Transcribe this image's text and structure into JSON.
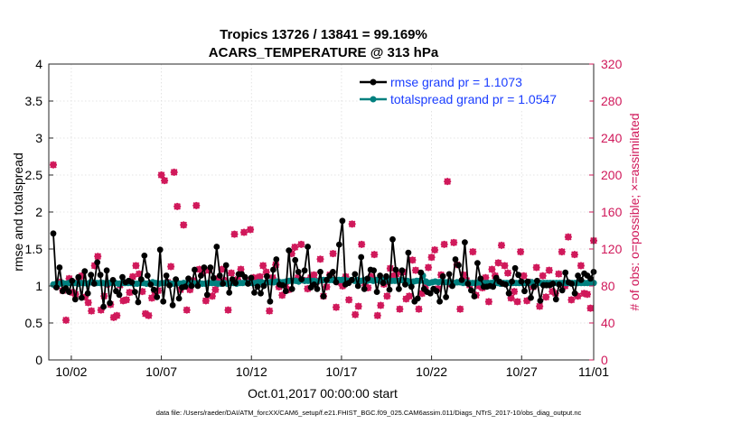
{
  "figure": {
    "title_line1": "Tropics 13726 / 13841 = 99.169%",
    "title_line2": "ACARS_TEMPERATURE @ 313 hPa",
    "xlabel": "Oct.01,2017 00:00:00 start",
    "footer": "data file: /Users/raeder/DAI/ATM_forcXX/CAM6_setup/f.e21.FHIST_BGC.f09_025.CAM6assim.011/Diags_NTrS_2017-10/obs_diag_output.nc"
  },
  "chart_data": {
    "type": "line",
    "title": "Tropics 13726 / 13841 = 99.169%\nACARS_TEMPERATURE @ 313 hPa",
    "xlabel": "Oct.01,2017 00:00:00 start",
    "ylabel": "rmse and totalspread",
    "y2label": "# of obs: o=possible; ×=assimilated",
    "x_unit": "days since Oct.01,2017 00:00:00",
    "xlim": [
      0.75,
      31.0
    ],
    "ylim": [
      0,
      4
    ],
    "y2lim": [
      0,
      320
    ],
    "xtick_values": [
      2,
      7,
      12,
      17,
      22,
      27,
      32
    ],
    "xtick_labels": [
      "10/02",
      "10/07",
      "10/12",
      "10/17",
      "10/22",
      "10/27",
      "11/01"
    ],
    "ytick_values": [
      0,
      0.5,
      1,
      1.5,
      2,
      2.5,
      3,
      3.5,
      4
    ],
    "ytick_labels": [
      "0",
      "0.5",
      "1",
      "1.5",
      "2",
      "2.5",
      "3",
      "3.5",
      "4"
    ],
    "y2tick_values": [
      0,
      40,
      80,
      120,
      160,
      200,
      240,
      280,
      320
    ],
    "y2tick_labels": [
      "0",
      "40",
      "80",
      "120",
      "160",
      "200",
      "240",
      "280",
      "320"
    ],
    "grid": true,
    "legend_position": "top-right",
    "series": [
      {
        "name": "rmse grand pr = 1.1073",
        "color": "#000000",
        "marker": "circle",
        "values": [
          1.71,
          0.98,
          1.25,
          0.93,
          0.97,
          0.92,
          1.07,
          0.82,
          1.12,
          0.84,
          1.2,
          0.9,
          1.15,
          1.03,
          1.32,
          1.15,
          0.72,
          1.21,
          0.77,
          1.08,
          0.93,
          0.88,
          1.12,
          1.05,
          1.07,
          1.05,
          0.92,
          0.78,
          1.09,
          1.41,
          1.14,
          1.02,
          0.95,
          0.85,
          1.49,
          0.79,
          1.14,
          1.01,
          0.74,
          1.09,
          0.83,
          0.98,
          0.99,
          1.1,
          1.0,
          1.22,
          1.0,
          1.14,
          1.25,
          0.88,
          1.25,
          1.11,
          1.53,
          1.14,
          1.03,
          1.28,
          0.91,
          1.09,
          1.04,
          1.16,
          1.16,
          1.12,
          1.03,
          1.11,
          0.91,
          0.99,
          0.9,
          1.0,
          1.13,
          0.79,
          1.22,
          1.36,
          1.02,
          1.01,
          0.93,
          1.48,
          0.96,
          1.35,
          1.19,
          1.09,
          1.21,
          1.53,
          0.98,
          1.02,
          0.96,
          1.19,
          0.86,
          1.08,
          1.14,
          1.19,
          1.05,
          1.56,
          1.88,
          1.02,
          1.04,
          1.08,
          1.16,
          1.0,
          1.39,
          0.96,
          1.1,
          1.22,
          1.21,
          0.92,
          1.14,
          1.04,
          1.13,
          0.95,
          1.63,
          1.22,
          0.96,
          1.21,
          1.02,
          1.45,
          0.99,
          0.79,
          0.83,
          1.18,
          0.96,
          0.92,
          0.9,
          0.96,
          0.93,
          0.79,
          1.13,
          0.85,
          1.16,
          1.0,
          1.36,
          1.28,
          1.08,
          1.59,
          1.03,
          0.94,
          0.86,
          1.31,
          1.1,
          0.99,
          0.99,
          1.0,
          0.99,
          1.11,
          1.06,
          1.03,
          1.02,
          0.9,
          1.06,
          1.24,
          1.15,
          1.06,
          0.93,
          1.06,
          0.84,
          0.99,
          1.07,
          0.8,
          1.01,
          1.01,
          1.01,
          1.03,
          0.82,
          1.02,
          0.94,
          1.18,
          1.05,
          1.03,
          0.9,
          1.14,
          1.08,
          1.17,
          1.14,
          1.1,
          1.19
        ]
      },
      {
        "name": "totalspread grand pr = 1.0547",
        "color": "#00807f",
        "marker": "circle",
        "values": [
          1.02,
          1.03,
          1.03,
          1.04,
          1.03,
          1.04,
          1.04,
          1.04,
          1.03,
          1.04,
          1.04,
          1.03,
          1.05,
          1.04,
          1.04,
          1.04,
          1.04,
          1.03,
          1.04,
          1.04,
          1.04,
          1.03,
          1.04,
          1.04,
          1.04,
          1.04,
          1.03,
          1.03,
          1.04,
          1.04,
          1.03,
          1.04,
          1.05,
          1.04,
          1.03,
          1.04,
          1.04,
          1.04,
          1.03,
          1.03,
          1.04,
          1.03,
          1.04,
          1.03,
          1.04,
          1.04,
          1.03,
          1.04,
          1.03,
          1.03,
          1.04,
          1.04,
          1.04,
          1.03,
          1.03,
          1.04,
          1.03,
          1.04,
          1.04,
          1.03,
          1.04,
          1.04,
          1.05,
          1.04,
          1.04,
          1.04,
          1.05,
          1.05,
          1.04,
          1.05,
          1.05,
          1.05,
          1.06,
          1.05,
          1.05,
          1.06,
          1.07,
          1.07,
          1.07,
          1.06,
          1.08,
          1.07,
          1.07,
          1.07,
          1.07,
          1.06,
          1.08,
          1.08,
          1.08,
          1.08,
          1.08,
          1.08,
          1.08,
          1.08,
          1.08,
          1.07,
          1.08,
          1.07,
          1.08,
          1.07,
          1.08,
          1.07,
          1.08,
          1.07,
          1.08,
          1.07,
          1.08,
          1.07,
          1.08,
          1.07,
          1.07,
          1.07,
          1.08,
          1.07,
          1.07,
          1.03,
          1.06,
          1.07,
          1.07,
          1.14,
          1.06,
          1.04,
          1.05,
          1.06,
          1.05,
          1.06,
          1.05,
          1.05,
          1.05,
          1.04,
          1.05,
          1.05,
          1.04,
          1.05,
          1.04,
          1.04,
          1.04,
          1.05,
          1.04,
          1.04,
          1.04,
          1.04,
          1.05,
          1.04,
          1.03,
          1.04,
          1.04,
          1.04,
          1.04,
          1.04,
          1.04,
          1.04,
          1.04,
          1.04,
          1.05,
          1.04,
          1.04,
          1.04,
          1.04,
          1.04,
          1.04,
          1.04,
          1.04,
          1.04,
          1.04,
          1.04,
          1.04,
          1.04,
          1.04,
          1.04,
          1.04,
          1.04,
          1.04,
          1.04,
          1.04
        ]
      }
    ],
    "obs_series": {
      "name": "# of obs (right axis)",
      "color": "#d0185a",
      "possible_marker": "circle",
      "assimilated_marker": "x",
      "possible": [
        211,
        80,
        84,
        75,
        43,
        88,
        73,
        71,
        86,
        91,
        68,
        62,
        53,
        102,
        112,
        54,
        69,
        82,
        60,
        46,
        48,
        81,
        64,
        65,
        73,
        90,
        102,
        93,
        74,
        50,
        48,
        67,
        73,
        75,
        200,
        194,
        84,
        101,
        203,
        166,
        76,
        146,
        54,
        76,
        86,
        167,
        98,
        94,
        64,
        97,
        69,
        76,
        88,
        98,
        86,
        54,
        94,
        136,
        87,
        98,
        138,
        86,
        141,
        89,
        88,
        90,
        102,
        95,
        53,
        89,
        103,
        79,
        70,
        82,
        76,
        115,
        122,
        89,
        125,
        86,
        77,
        89,
        92,
        85,
        109,
        69,
        79,
        92,
        115,
        57,
        84,
        80,
        90,
        65,
        147,
        49,
        58,
        125,
        83,
        78,
        90,
        114,
        48,
        59,
        82,
        69,
        99,
        91,
        93,
        55,
        95,
        66,
        69,
        108,
        97,
        55,
        72,
        78,
        100,
        111,
        119,
        77,
        92,
        125,
        193,
        82,
        127,
        103,
        55,
        92,
        86,
        81,
        117,
        70,
        80,
        78,
        89,
        63,
        98,
        91,
        105,
        124,
        102,
        94,
        67,
        74,
        63,
        117,
        91,
        64,
        84,
        79,
        100,
        58,
        91,
        68,
        97,
        74,
        72,
        93,
        117,
        80,
        133,
        65,
        114,
        69,
        102,
        72,
        71,
        56,
        129
      ]
    }
  },
  "legend": {
    "rmse_label": "rmse grand pr = 1.1073",
    "spread_label": "totalspread grand pr = 1.0547"
  }
}
